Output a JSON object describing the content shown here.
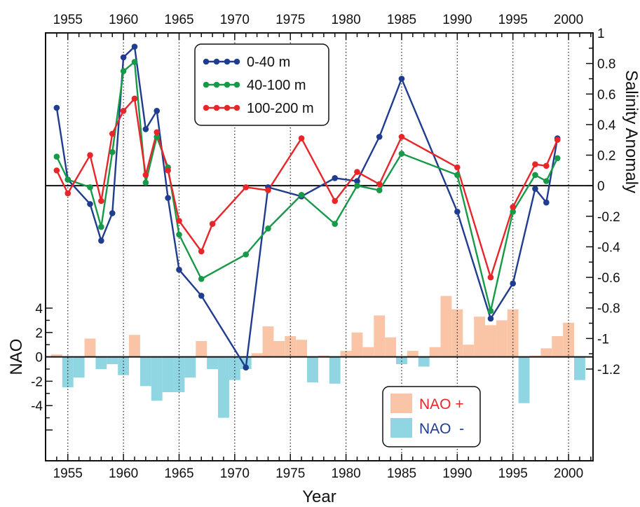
{
  "chart_data": {
    "type": "line",
    "xlabel": "Year",
    "y_right_label": "Salinity Anomaly",
    "y_left_label": "NAO",
    "xlim": [
      1953,
      2002.2
    ],
    "x_ticks": [
      1955,
      1960,
      1965,
      1970,
      1975,
      1980,
      1985,
      1990,
      1995,
      2000
    ],
    "x_tick_labels": [
      "1955",
      "1960",
      "1965",
      "1970",
      "1975",
      "1980",
      "1985",
      "1990",
      "1995",
      "2000"
    ],
    "salinity_ylim": [
      -1.2,
      1
    ],
    "salinity_ticks": [
      1,
      0.8,
      0.6,
      0.4,
      0.2,
      0,
      -0.2,
      -0.4,
      -0.6,
      -0.8,
      -1,
      -1.2
    ],
    "salinity_tick_labels": [
      "1",
      "0.8",
      "0.6",
      "0.4",
      "0.2",
      "0",
      "-0.2",
      "-0.4",
      "-0.6",
      "-0.8",
      "-1",
      "-1.2"
    ],
    "nao_ylim": [
      -6,
      4
    ],
    "nao_ticks": [
      4,
      2,
      0,
      -2,
      -4
    ],
    "nao_tick_labels": [
      "4",
      "2",
      "0",
      "-2",
      "-4"
    ],
    "grid": "vertical dotted at x ticks",
    "series": [
      {
        "name": "0-40 m",
        "color": "#1f3c8f",
        "x": [
          1954,
          1955,
          1957,
          1958,
          1959,
          1960,
          1961,
          1962,
          1963,
          1964,
          1965,
          1967,
          1971,
          1973,
          1976,
          1979,
          1981,
          1983,
          1985,
          1990,
          1993,
          1995,
          1997,
          1998,
          1999
        ],
        "y": [
          0.51,
          0.04,
          -0.12,
          -0.36,
          -0.18,
          0.84,
          0.91,
          0.37,
          0.49,
          -0.08,
          -0.55,
          -0.72,
          -1.19,
          -0.01,
          -0.07,
          0.05,
          0.03,
          0.32,
          0.7,
          -0.17,
          -0.87,
          -0.64,
          -0.02,
          -0.11,
          0.31
        ]
      },
      {
        "name": "40-100 m",
        "color": "#169a48",
        "x": [
          1954,
          1955,
          1957,
          1958,
          1959,
          1960,
          1961,
          1962,
          1963,
          1964,
          1965,
          1967,
          1971,
          1973,
          1976,
          1979,
          1981,
          1983,
          1985,
          1990,
          1993,
          1995,
          1997,
          1998,
          1999
        ],
        "y": [
          0.19,
          0.04,
          -0.01,
          -0.27,
          0.22,
          0.75,
          0.81,
          0.02,
          0.32,
          0.12,
          -0.32,
          -0.61,
          -0.45,
          -0.28,
          -0.06,
          -0.25,
          0.0,
          -0.03,
          0.21,
          0.07,
          -0.82,
          -0.17,
          0.07,
          0.03,
          0.18
        ]
      },
      {
        "name": "100-200 m",
        "color": "#e8262a",
        "x": [
          1954,
          1955,
          1957,
          1958,
          1959,
          1960,
          1961,
          1962,
          1963,
          1964,
          1965,
          1967,
          1968,
          1971,
          1973,
          1976,
          1979,
          1981,
          1983,
          1985,
          1990,
          1993,
          1995,
          1997,
          1998,
          1999
        ],
        "y": [
          0.1,
          -0.05,
          0.2,
          -0.1,
          0.34,
          0.49,
          0.57,
          0.07,
          0.35,
          0.1,
          -0.23,
          -0.43,
          -0.25,
          -0.01,
          -0.03,
          0.31,
          -0.1,
          0.09,
          0.01,
          0.32,
          0.12,
          -0.6,
          -0.14,
          0.14,
          0.13,
          0.3
        ]
      }
    ],
    "nao": {
      "legend_positive": "NAO +",
      "legend_negative": "NAO  -",
      "positive_color": "#f9c5a6",
      "negative_color": "#8fd6e2",
      "years": [
        1954,
        1955,
        1956,
        1957,
        1958,
        1959,
        1960,
        1961,
        1962,
        1963,
        1964,
        1965,
        1966,
        1967,
        1968,
        1969,
        1970,
        1971,
        1972,
        1973,
        1974,
        1975,
        1976,
        1977,
        1978,
        1979,
        1980,
        1981,
        1982,
        1983,
        1984,
        1985,
        1986,
        1987,
        1988,
        1989,
        1990,
        1991,
        1992,
        1993,
        1994,
        1995,
        1996,
        1997,
        1998,
        1999,
        2000,
        2001
      ],
      "values": [
        0.2,
        -2.5,
        -1.7,
        1.5,
        -1.0,
        -0.6,
        -1.5,
        1.8,
        -2.4,
        -3.6,
        -2.9,
        -2.9,
        -1.7,
        1.3,
        -1.0,
        -5.0,
        -1.9,
        -1.0,
        0.3,
        2.5,
        1.3,
        1.7,
        1.4,
        -2.1,
        0.1,
        -2.2,
        0.5,
        2.0,
        0.8,
        3.4,
        1.6,
        -0.6,
        0.5,
        -0.8,
        0.8,
        5.0,
        3.9,
        1.0,
        3.3,
        2.6,
        3.0,
        3.9,
        -3.8,
        0.1,
        0.7,
        1.7,
        2.8,
        -1.9
      ]
    }
  }
}
